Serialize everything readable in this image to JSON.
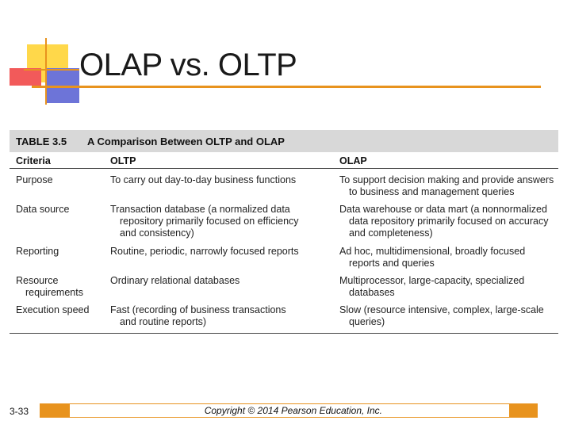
{
  "slide": {
    "title": "OLAP vs. OLTP",
    "accent_color": "#e8931e",
    "slide_number": "3-33",
    "copyright": "Copyright © 2014 Pearson Education, Inc."
  },
  "table": {
    "label": "TABLE 3.5",
    "caption": "A Comparison Between OLTP and OLAP",
    "headers": [
      "Criteria",
      "OLTP",
      "OLAP"
    ],
    "rows": [
      {
        "criteria": [
          "Purpose"
        ],
        "oltp": [
          "To carry out day-to-day business functions"
        ],
        "olap": [
          "To support decision making and provide answers",
          "to business and management queries"
        ]
      },
      {
        "criteria": [
          "Data source"
        ],
        "oltp": [
          "Transaction database (a normalized data",
          "repository primarily focused on efficiency",
          "and consistency)"
        ],
        "olap": [
          "Data warehouse or data mart (a nonnormalized",
          "data repository primarily focused on accuracy",
          "and completeness)"
        ]
      },
      {
        "criteria": [
          "Reporting"
        ],
        "oltp": [
          "Routine, periodic, narrowly focused reports"
        ],
        "olap": [
          "Ad hoc, multidimensional, broadly focused",
          "reports and queries"
        ]
      },
      {
        "criteria": [
          "Resource",
          "requirements"
        ],
        "oltp": [
          "Ordinary relational databases"
        ],
        "olap": [
          "Multiprocessor, large-capacity, specialized",
          "databases"
        ]
      },
      {
        "criteria": [
          "Execution speed"
        ],
        "oltp": [
          "Fast (recording of business transactions",
          "and routine reports)"
        ],
        "olap": [
          "Slow (resource intensive, complex, large-scale",
          "queries)"
        ]
      }
    ]
  }
}
